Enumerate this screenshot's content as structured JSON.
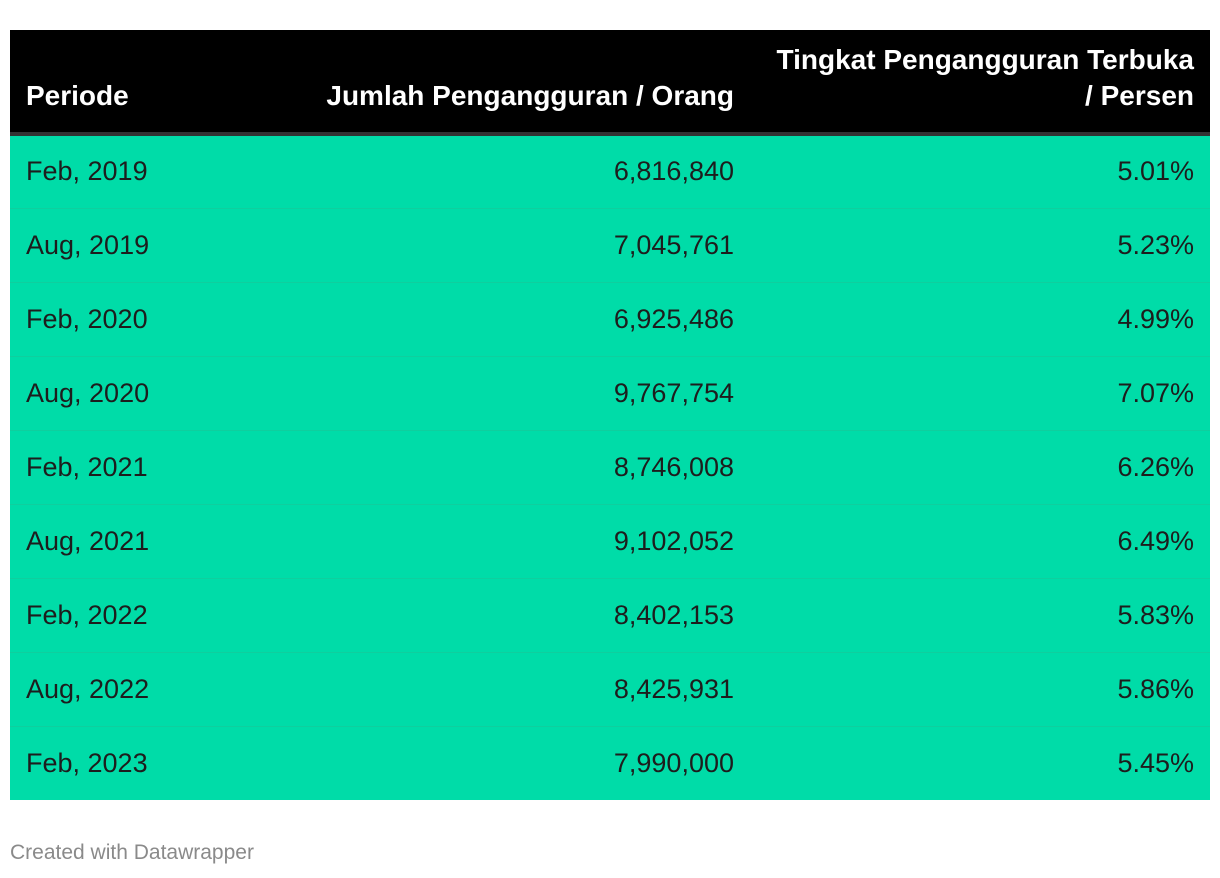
{
  "chart_data": {
    "type": "table",
    "columns": [
      "Periode",
      "Jumlah Pengangguran / Orang",
      "Tingkat Pengangguran Terbuka / Persen"
    ],
    "header": {
      "periode": "Periode",
      "jumlah": "Jumlah Pengangguran / Orang",
      "tingkat": "Tingkat Pengangguran Terbuka / Persen"
    },
    "rows": [
      {
        "periode": "Feb, 2019",
        "jumlah": "6,816,840",
        "tingkat": "5.01%"
      },
      {
        "periode": "Aug, 2019",
        "jumlah": "7,045,761",
        "tingkat": "5.23%"
      },
      {
        "periode": "Feb, 2020",
        "jumlah": "6,925,486",
        "tingkat": "4.99%"
      },
      {
        "periode": "Aug, 2020",
        "jumlah": "9,767,754",
        "tingkat": "7.07%"
      },
      {
        "periode": "Feb, 2021",
        "jumlah": "8,746,008",
        "tingkat": "6.26%"
      },
      {
        "periode": "Aug, 2021",
        "jumlah": "9,102,052",
        "tingkat": "6.49%"
      },
      {
        "periode": "Feb, 2022",
        "jumlah": "8,402,153",
        "tingkat": "5.83%"
      },
      {
        "periode": "Aug, 2022",
        "jumlah": "8,425,931",
        "tingkat": "5.86%"
      },
      {
        "periode": "Feb, 2023",
        "jumlah": "7,990,000",
        "tingkat": "5.45%"
      }
    ],
    "colors": {
      "header_bg": "#000000",
      "header_text": "#ffffff",
      "row_bg": "#00dca8",
      "row_text": "#1d1d1d"
    }
  },
  "footer": {
    "credit": "Created with Datawrapper"
  }
}
